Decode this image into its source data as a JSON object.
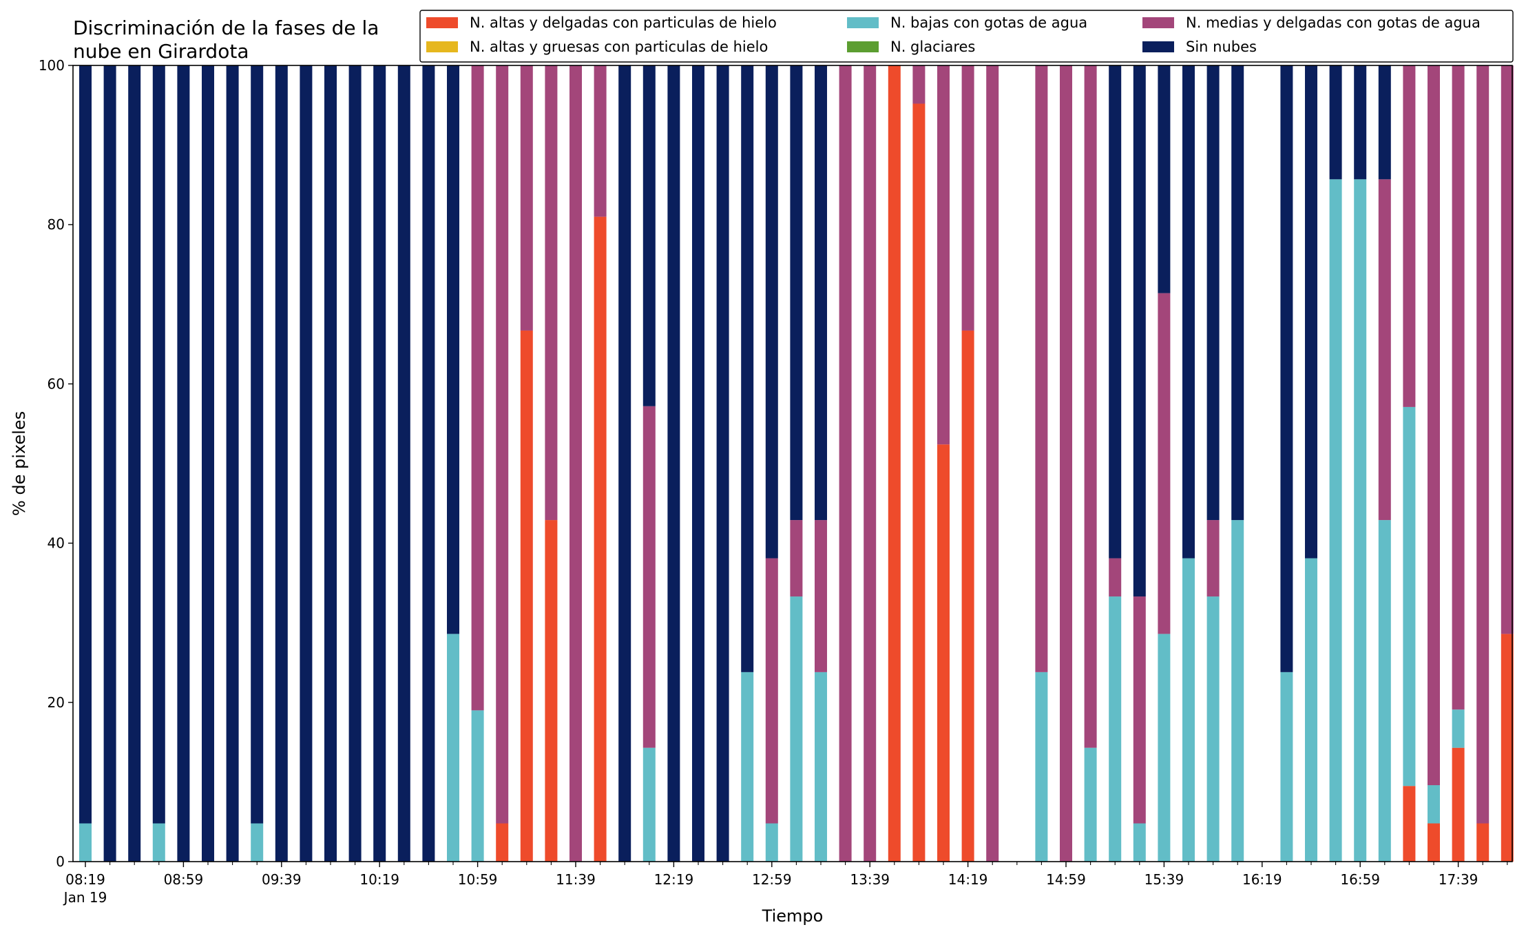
{
  "chart_data": {
    "type": "bar",
    "stacked": true,
    "title_lines": [
      "Discriminación de la fases de la",
      "nube en Girardota"
    ],
    "xlabel": "Tiempo",
    "ylabel": "% de pixeles",
    "ylim": [
      0,
      100
    ],
    "yticks": [
      0,
      20,
      40,
      60,
      80,
      100
    ],
    "grid": false,
    "legend_position": "top-right",
    "xtick_labels": [
      "08:19",
      "08:59",
      "09:39",
      "10:19",
      "10:59",
      "11:39",
      "12:19",
      "12:59",
      "13:39",
      "14:19",
      "14:59",
      "15:39",
      "16:19",
      "16:59",
      "17:39"
    ],
    "xtick_sub_label": "Jan 19",
    "series": [
      {
        "key": "hielo_delgadas",
        "name": "N. altas y delgadas con particulas de hielo",
        "color": "#ee4b2b"
      },
      {
        "key": "hielo_gruesas",
        "name": "N. altas y gruesas con particulas de hielo",
        "color": "#e6b71e"
      },
      {
        "key": "agua_bajas",
        "name": "N. bajas con gotas de agua",
        "color": "#62bdc7"
      },
      {
        "key": "glaciares",
        "name": "N. glaciares",
        "color": "#5c9e31"
      },
      {
        "key": "agua_medias",
        "name": "N. medias y delgadas con gotas de agua",
        "color": "#a3467a"
      },
      {
        "key": "sin_nubes",
        "name": "Sin nubes",
        "color": "#0a1f5c"
      }
    ],
    "stack_order": [
      "hielo_delgadas",
      "hielo_gruesas",
      "agua_bajas",
      "glaciares",
      "agua_medias",
      "sin_nubes"
    ],
    "bars": [
      {
        "time": "08:19",
        "agua_bajas": 4.8,
        "sin_nubes": 95.2
      },
      {
        "time": "08:29",
        "sin_nubes": 100
      },
      {
        "time": "08:39",
        "sin_nubes": 100
      },
      {
        "time": "08:49",
        "agua_bajas": 4.8,
        "sin_nubes": 95.2
      },
      {
        "time": "08:59",
        "sin_nubes": 100
      },
      {
        "time": "09:09",
        "sin_nubes": 100
      },
      {
        "time": "09:19",
        "sin_nubes": 100
      },
      {
        "time": "09:29",
        "agua_bajas": 4.8,
        "sin_nubes": 95.2
      },
      {
        "time": "09:39",
        "sin_nubes": 100
      },
      {
        "time": "09:49",
        "sin_nubes": 100
      },
      {
        "time": "09:59",
        "sin_nubes": 100
      },
      {
        "time": "10:09",
        "sin_nubes": 100
      },
      {
        "time": "10:19",
        "sin_nubes": 100
      },
      {
        "time": "10:29",
        "sin_nubes": 100
      },
      {
        "time": "10:39",
        "sin_nubes": 100
      },
      {
        "time": "10:49",
        "agua_bajas": 28.6,
        "sin_nubes": 71.4
      },
      {
        "time": "10:59",
        "agua_bajas": 19.0,
        "agua_medias": 81.0
      },
      {
        "time": "11:09",
        "hielo_delgadas": 4.8,
        "agua_medias": 95.2
      },
      {
        "time": "11:19",
        "hielo_delgadas": 66.7,
        "agua_medias": 33.3
      },
      {
        "time": "11:29",
        "hielo_delgadas": 42.9,
        "agua_medias": 57.1
      },
      {
        "time": "11:39",
        "agua_medias": 100
      },
      {
        "time": "11:49",
        "hielo_delgadas": 81.0,
        "agua_medias": 19.0
      },
      {
        "time": "11:59",
        "sin_nubes": 100
      },
      {
        "time": "12:09",
        "agua_bajas": 14.3,
        "agua_medias": 42.9,
        "sin_nubes": 42.8
      },
      {
        "time": "12:19",
        "sin_nubes": 100
      },
      {
        "time": "12:29",
        "sin_nubes": 100
      },
      {
        "time": "12:39",
        "sin_nubes": 100
      },
      {
        "time": "12:49",
        "agua_bajas": 23.8,
        "sin_nubes": 76.2
      },
      {
        "time": "12:59",
        "agua_bajas": 4.8,
        "agua_medias": 33.3,
        "sin_nubes": 61.9
      },
      {
        "time": "13:09",
        "agua_bajas": 33.3,
        "agua_medias": 9.6,
        "sin_nubes": 57.1
      },
      {
        "time": "13:19",
        "agua_bajas": 23.8,
        "agua_medias": 19.1,
        "sin_nubes": 57.1
      },
      {
        "time": "13:29",
        "agua_medias": 100
      },
      {
        "time": "13:39",
        "agua_medias": 100
      },
      {
        "time": "13:49",
        "hielo_delgadas": 100
      },
      {
        "time": "13:59",
        "hielo_delgadas": 95.2,
        "agua_medias": 4.8
      },
      {
        "time": "14:09",
        "hielo_delgadas": 52.4,
        "agua_medias": 47.6
      },
      {
        "time": "14:19",
        "hielo_delgadas": 66.7,
        "agua_medias": 33.3
      },
      {
        "time": "14:29",
        "agua_medias": 100
      },
      {
        "time": "14:39"
      },
      {
        "time": "14:49",
        "agua_bajas": 23.8,
        "agua_medias": 76.2
      },
      {
        "time": "14:59",
        "agua_medias": 100
      },
      {
        "time": "15:09",
        "agua_bajas": 14.3,
        "agua_medias": 85.7
      },
      {
        "time": "15:19",
        "agua_bajas": 33.3,
        "agua_medias": 4.8,
        "sin_nubes": 61.9
      },
      {
        "time": "15:29",
        "agua_bajas": 4.8,
        "agua_medias": 28.5,
        "sin_nubes": 66.7
      },
      {
        "time": "15:39",
        "agua_bajas": 28.6,
        "agua_medias": 42.8,
        "sin_nubes": 28.6
      },
      {
        "time": "15:49",
        "agua_bajas": 38.1,
        "sin_nubes": 61.9
      },
      {
        "time": "15:59",
        "agua_bajas": 33.3,
        "agua_medias": 9.6,
        "sin_nubes": 57.1
      },
      {
        "time": "16:09",
        "agua_bajas": 42.9,
        "sin_nubes": 57.1
      },
      {
        "time": "16:19"
      },
      {
        "time": "16:29",
        "agua_bajas": 23.8,
        "sin_nubes": 76.2
      },
      {
        "time": "16:39",
        "agua_bajas": 38.1,
        "sin_nubes": 61.9
      },
      {
        "time": "16:49",
        "agua_bajas": 85.7,
        "sin_nubes": 14.3
      },
      {
        "time": "16:59",
        "agua_bajas": 85.7,
        "sin_nubes": 14.3
      },
      {
        "time": "17:09",
        "agua_bajas": 42.9,
        "agua_medias": 42.8,
        "sin_nubes": 14.3
      },
      {
        "time": "17:19",
        "hielo_delgadas": 9.5,
        "agua_bajas": 47.6,
        "agua_medias": 42.9
      },
      {
        "time": "17:29",
        "hielo_delgadas": 4.8,
        "agua_bajas": 4.8,
        "agua_medias": 90.4
      },
      {
        "time": "17:39",
        "hielo_delgadas": 14.3,
        "agua_bajas": 4.8,
        "agua_medias": 80.9
      },
      {
        "time": "17:49",
        "hielo_delgadas": 4.8,
        "agua_medias": 95.2
      },
      {
        "time": "17:59",
        "hielo_delgadas": 28.6,
        "agua_medias": 71.4
      }
    ]
  }
}
